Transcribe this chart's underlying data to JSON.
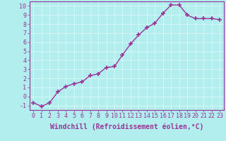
{
  "x": [
    0,
    1,
    2,
    3,
    4,
    5,
    6,
    7,
    8,
    9,
    10,
    11,
    12,
    13,
    14,
    15,
    16,
    17,
    18,
    19,
    20,
    21,
    22,
    23
  ],
  "y": [
    -0.7,
    -1.1,
    -0.7,
    0.5,
    1.1,
    1.4,
    1.6,
    2.3,
    2.5,
    3.2,
    3.3,
    4.6,
    5.8,
    6.8,
    7.6,
    8.1,
    9.2,
    10.1,
    10.1,
    9.0,
    8.6,
    8.6,
    8.6,
    8.5
  ],
  "line_color": "#993399",
  "marker": "+",
  "marker_size": 5,
  "linewidth": 1.0,
  "xlabel": "Windchill (Refroidissement éolien,°C)",
  "ylabel": "",
  "xlim": [
    -0.5,
    23.5
  ],
  "ylim": [
    -1.5,
    10.5
  ],
  "yticks": [
    -1,
    0,
    1,
    2,
    3,
    4,
    5,
    6,
    7,
    8,
    9,
    10
  ],
  "xticks": [
    0,
    1,
    2,
    3,
    4,
    5,
    6,
    7,
    8,
    9,
    10,
    11,
    12,
    13,
    14,
    15,
    16,
    17,
    18,
    19,
    20,
    21,
    22,
    23
  ],
  "bg_color": "#b2eeee",
  "grid_color": "#d4f5f5",
  "tick_color": "#993399",
  "label_color": "#993399",
  "xlabel_fontsize": 7,
  "tick_fontsize": 6,
  "spine_color": "#993399"
}
